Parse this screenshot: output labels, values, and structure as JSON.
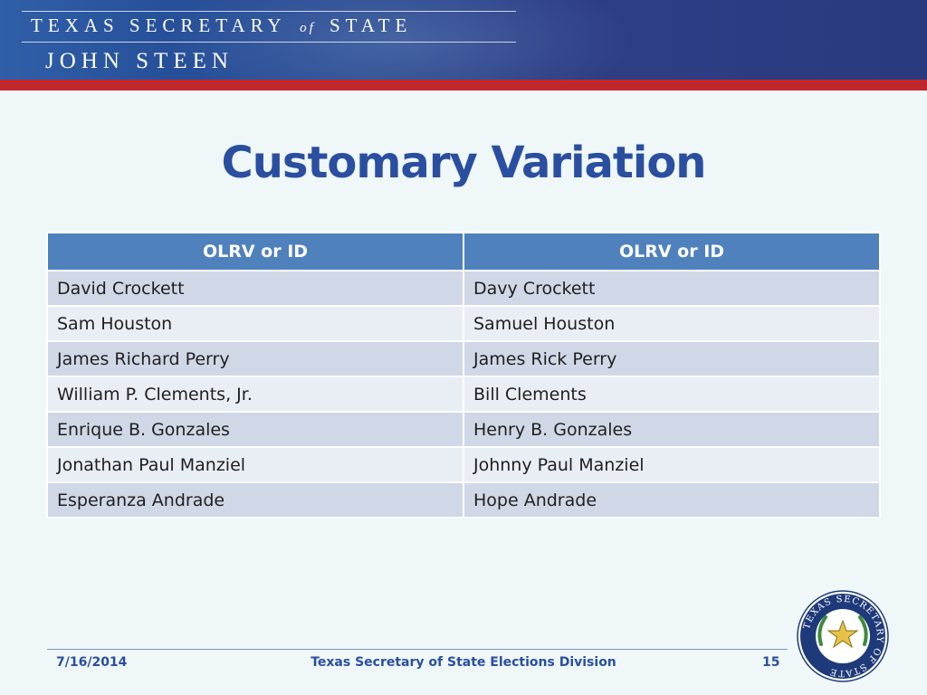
{
  "header": {
    "line1_pre": "TEXAS SECRETARY",
    "line1_of": "of",
    "line1_post": "STATE",
    "line2": "JOHN STEEN"
  },
  "title": "Customary Variation",
  "table": {
    "columns": [
      "OLRV or ID",
      "OLRV or ID"
    ],
    "rows": [
      [
        "David Crockett",
        "Davy Crockett"
      ],
      [
        "Sam Houston",
        "Samuel Houston"
      ],
      [
        "James Richard Perry",
        "James Rick Perry"
      ],
      [
        "William P. Clements, Jr.",
        "Bill Clements"
      ],
      [
        "Enrique B. Gonzales",
        "Henry B. Gonzales"
      ],
      [
        "Jonathan Paul Manziel",
        "Johnny Paul Manziel"
      ],
      [
        "Esperanza Andrade",
        "Hope Andrade"
      ]
    ]
  },
  "footer": {
    "date": "7/16/2014",
    "center": "Texas Secretary of State Elections Division",
    "page": "15"
  },
  "seal": {
    "text": "TEXAS SECRETARY OF STATE",
    "icon": "texas-star-seal-icon"
  },
  "colors": {
    "title": "#2a4ea0",
    "header_bg": "#4f81bd",
    "row_odd": "#d0d8e8",
    "row_even": "#e9edf4",
    "accent_red": "#c0272d"
  }
}
